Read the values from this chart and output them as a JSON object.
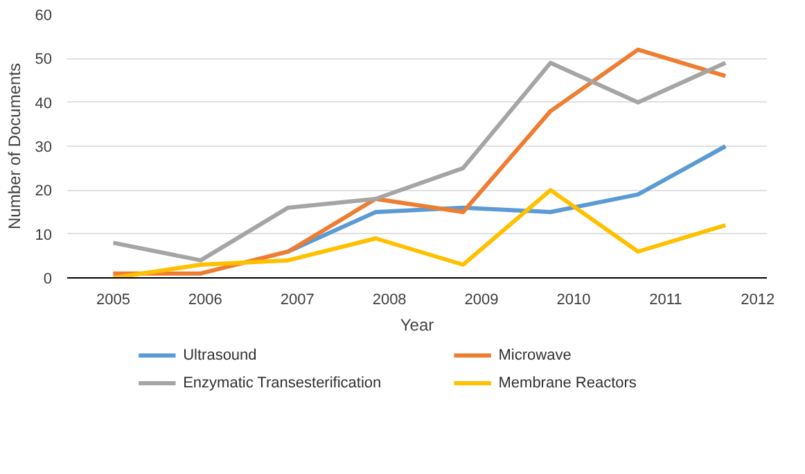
{
  "chart_data": {
    "type": "line",
    "xlabel": "Year",
    "ylabel": "Number of Documents",
    "x": [
      2005,
      2005.95,
      2006.9,
      2007.85,
      2008.8,
      2009.75,
      2010.7,
      2011.65
    ],
    "series": [
      {
        "name": "Ultrasound",
        "color": "#5b9bd5",
        "values": [
          null,
          null,
          6,
          15,
          16,
          15,
          19,
          30
        ]
      },
      {
        "name": "Microwave",
        "color": "#ed7d31",
        "values": [
          1,
          1,
          6,
          18,
          15,
          38,
          52,
          46
        ]
      },
      {
        "name": "Enzymatic Transesterification",
        "color": "#a5a5a5",
        "values": [
          8,
          4,
          16,
          18,
          25,
          49,
          40,
          49
        ]
      },
      {
        "name": "Membrane Reactors",
        "color": "#ffc000",
        "values": [
          0,
          3,
          4,
          9,
          3,
          20,
          6,
          12
        ]
      }
    ],
    "xlim": [
      2004.5,
      2012.1
    ],
    "xticks": [
      2005,
      2006,
      2007,
      2008,
      2009,
      2010,
      2011,
      2012
    ],
    "ylim": [
      0,
      60
    ],
    "yticks": [
      0,
      10,
      20,
      30,
      40,
      50,
      60
    ],
    "grid": "y",
    "legend": "bottom",
    "marker": "none",
    "line_style": "solid"
  }
}
